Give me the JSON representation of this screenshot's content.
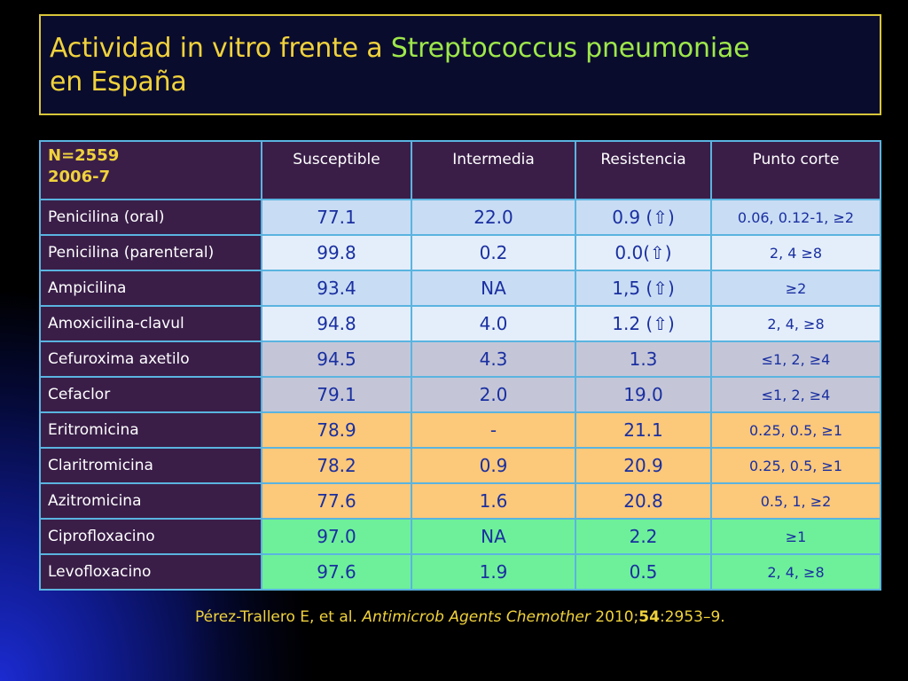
{
  "title": {
    "part1": "Actividad in vitro frente a ",
    "accent": "Streptococcus pneumoniae",
    "part2": "en España"
  },
  "table": {
    "corner_line1": "N=2559",
    "corner_line2": "2006-7",
    "headers": [
      "Susceptible",
      "Intermedia",
      "Resistencia",
      "Punto corte"
    ],
    "rows": [
      {
        "name": "Penicilina (oral)",
        "cells": [
          "77.1",
          "22.0",
          "0.9 (⇧)",
          "0.06, 0.12-1, ≥2"
        ]
      },
      {
        "name": "Penicilina (parenteral)",
        "cells": [
          "99.8",
          "0.2",
          "0.0(⇧)",
          "2, 4 ≥8"
        ]
      },
      {
        "name": "Ampicilina",
        "cells": [
          "93.4",
          "NA",
          "1,5 (⇧)",
          "≥2"
        ]
      },
      {
        "name": "Amoxicilina-clavul",
        "cells": [
          "94.8",
          "4.0",
          "1.2 (⇧)",
          "2, 4, ≥8"
        ]
      },
      {
        "name": "Cefuroxima axetilo",
        "cells": [
          "94.5",
          "4.3",
          "1.3",
          "≤1, 2, ≥4"
        ]
      },
      {
        "name": "Cefaclor",
        "cells": [
          "79.1",
          "2.0",
          "19.0",
          "≤1, 2, ≥4"
        ]
      },
      {
        "name": "Eritromicina",
        "cells": [
          "78.9",
          "-",
          "21.1",
          "0.25, 0.5, ≥1"
        ]
      },
      {
        "name": "Claritromicina",
        "cells": [
          "78.2",
          "0.9",
          "20.9",
          "0.25, 0.5, ≥1"
        ]
      },
      {
        "name": "Azitromicina",
        "cells": [
          "77.6",
          "1.6",
          "20.8",
          "0.5, 1, ≥2"
        ]
      },
      {
        "name": "Ciprofloxacino",
        "cells": [
          "97.0",
          "NA",
          "2.2",
          "≥1"
        ]
      },
      {
        "name": "Levofloxacino",
        "cells": [
          "97.6",
          "1.9",
          "0.5",
          "2, 4, ≥8"
        ]
      }
    ]
  },
  "citation": {
    "authors": "Pérez-Trallero E, et al. ",
    "journal": "Antimicrob Agents Chemother",
    "year": " 2010;",
    "volume": "54",
    "pages": ":2953–9."
  }
}
